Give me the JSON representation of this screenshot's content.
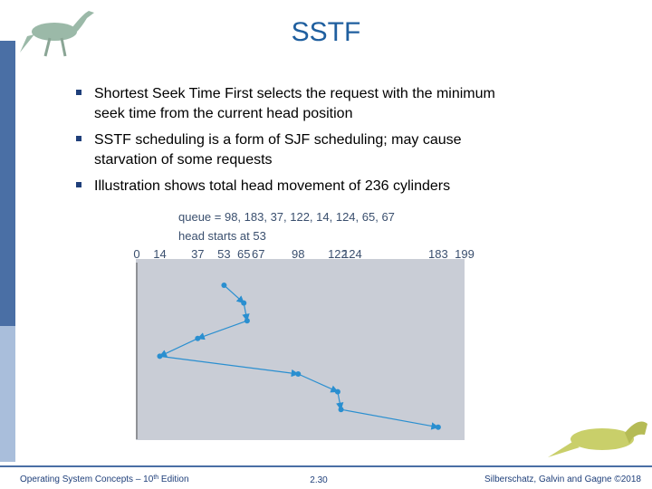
{
  "header": {
    "title": "SSTF"
  },
  "bullets": [
    "Shortest Seek Time First selects the request with the minimum",
    "seek time from the current head position",
    "SSTF scheduling is a form of SJF scheduling; may cause",
    "starvation of some requests",
    "Illustration shows total head movement of 236 cylinders"
  ],
  "figure": {
    "queue": "queue = 98, 183, 37, 122, 14, 124, 65, 67",
    "head_start": "head starts at 53",
    "ticks": [
      0,
      14,
      37,
      53,
      65,
      67,
      98,
      122,
      124,
      183,
      199
    ],
    "path": [
      53,
      65,
      67,
      37,
      14,
      98,
      122,
      124,
      183
    ]
  },
  "footer": {
    "left": [
      "Operating System Concepts – 10",
      "th",
      " Edition"
    ],
    "center": "2.30",
    "right": "Silberschatz, Galvin and Gagne ©2018"
  }
}
